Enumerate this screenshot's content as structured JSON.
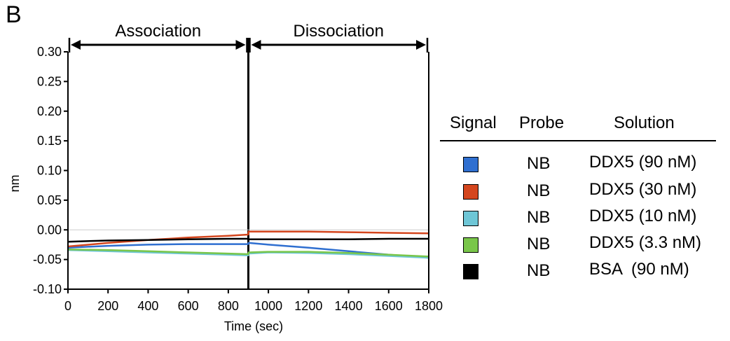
{
  "panel_label": "B",
  "legend": {
    "headers": {
      "signal": "Signal",
      "probe": "Probe",
      "solution": "Solution"
    },
    "rows": [
      {
        "color": "#2f6fd0",
        "probe": "NB",
        "solution": "DDX5 (90 nM)"
      },
      {
        "color": "#d4461e",
        "probe": "NB",
        "solution": "DDX5 (30 nM)"
      },
      {
        "color": "#6ec6d6",
        "probe": "NB",
        "solution": "DDX5 (10 nM)"
      },
      {
        "color": "#79c64a",
        "probe": "NB",
        "solution": "DDX5 (3.3 nM)"
      },
      {
        "color": "#000000",
        "probe": "NB",
        "solution": "BSA  (90 nM)"
      }
    ]
  },
  "chart_data": {
    "type": "line",
    "title": "",
    "xlabel": "Time (sec)",
    "ylabel": "nm",
    "xlim": [
      0,
      1800
    ],
    "ylim": [
      -0.1,
      0.3
    ],
    "xticks": [
      "0",
      "200",
      "400",
      "600",
      "800",
      "1000",
      "1200",
      "1400",
      "1600",
      "1800"
    ],
    "yticks": [
      "0.30",
      "0.25",
      "0.20",
      "0.15",
      "0.10",
      "0.05",
      "0.00",
      "-0.05",
      "-0.10"
    ],
    "phases": [
      {
        "label": "Association",
        "start": 0,
        "end": 900
      },
      {
        "label": "Dissociation",
        "start": 900,
        "end": 1800
      }
    ],
    "reference_line_y": 0.0,
    "series": [
      {
        "name": "DDX5 (90 nM)",
        "color": "#2f6fd0",
        "x": [
          0,
          200,
          400,
          600,
          800,
          900,
          901,
          1000,
          1200,
          1400,
          1600,
          1800
        ],
        "y": [
          -0.03,
          -0.027,
          -0.025,
          -0.024,
          -0.024,
          -0.024,
          -0.022,
          -0.025,
          -0.03,
          -0.036,
          -0.042,
          -0.047
        ]
      },
      {
        "name": "DDX5 (30 nM)",
        "color": "#d4461e",
        "x": [
          0,
          200,
          400,
          600,
          800,
          900,
          901,
          1000,
          1200,
          1400,
          1600,
          1800
        ],
        "y": [
          -0.028,
          -0.022,
          -0.017,
          -0.013,
          -0.01,
          -0.008,
          -0.003,
          -0.003,
          -0.003,
          -0.004,
          -0.005,
          -0.006
        ]
      },
      {
        "name": "DDX5 (10 nM)",
        "color": "#6ec6d6",
        "x": [
          0,
          200,
          400,
          600,
          800,
          900,
          901,
          1000,
          1200,
          1400,
          1600,
          1800
        ],
        "y": [
          -0.034,
          -0.036,
          -0.038,
          -0.04,
          -0.042,
          -0.043,
          -0.04,
          -0.038,
          -0.039,
          -0.041,
          -0.044,
          -0.047
        ]
      },
      {
        "name": "DDX5 (3.3 nM)",
        "color": "#79c64a",
        "x": [
          0,
          200,
          400,
          600,
          800,
          900,
          901,
          1000,
          1200,
          1400,
          1600,
          1800
        ],
        "y": [
          -0.033,
          -0.034,
          -0.036,
          -0.038,
          -0.04,
          -0.041,
          -0.038,
          -0.037,
          -0.037,
          -0.039,
          -0.042,
          -0.045
        ]
      },
      {
        "name": "BSA  (90 nM)",
        "color": "#000000",
        "x": [
          0,
          200,
          400,
          600,
          800,
          900,
          901,
          1000,
          1200,
          1400,
          1600,
          1800
        ],
        "y": [
          -0.02,
          -0.018,
          -0.017,
          -0.016,
          -0.015,
          -0.015,
          -0.016,
          -0.016,
          -0.016,
          -0.016,
          -0.015,
          -0.015
        ]
      }
    ]
  }
}
